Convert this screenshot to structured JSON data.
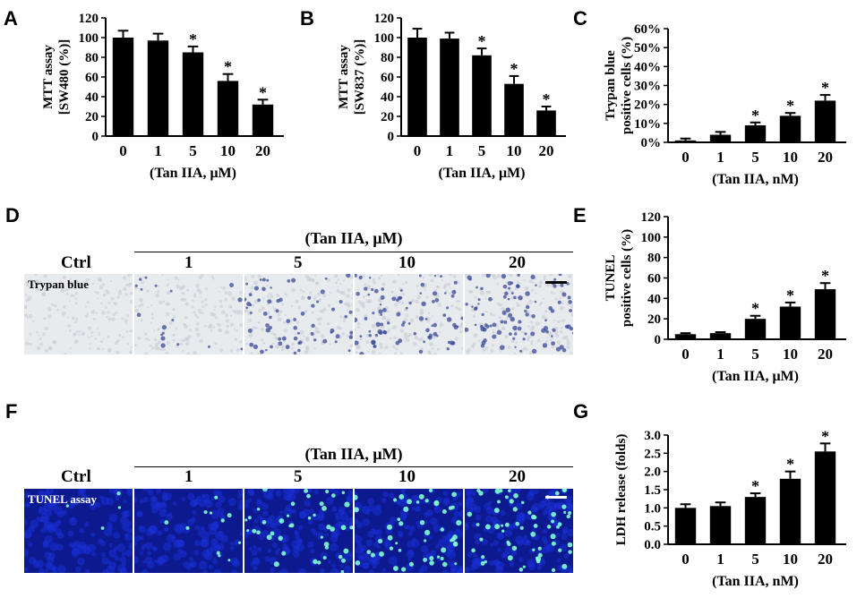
{
  "panels": {
    "A": "A",
    "B": "B",
    "C": "C",
    "D": "D",
    "E": "E",
    "F": "F",
    "G": "G"
  },
  "chart_data": [
    {
      "id": "A",
      "type": "bar",
      "categories": [
        "0",
        "1",
        "5",
        "10",
        "20"
      ],
      "values": [
        100,
        97,
        85,
        56,
        32
      ],
      "errors": [
        7,
        7,
        6,
        7,
        5
      ],
      "significant": [
        false,
        false,
        true,
        true,
        true
      ],
      "ylabel_lines": [
        "MTT assay",
        "[SW480 (%)]"
      ],
      "xlabel": "(Tan IIA, μM)",
      "ylim": [
        0,
        120
      ],
      "yticks": [
        "0",
        "20",
        "40",
        "60",
        "80",
        "100",
        "120"
      ],
      "star": "*"
    },
    {
      "id": "B",
      "type": "bar",
      "categories": [
        "0",
        "1",
        "5",
        "10",
        "20"
      ],
      "values": [
        100,
        99,
        82,
        53,
        26
      ],
      "errors": [
        9,
        6,
        7,
        8,
        4
      ],
      "significant": [
        false,
        false,
        true,
        true,
        true
      ],
      "ylabel_lines": [
        "MTT assay",
        "[SW837 (%)]"
      ],
      "xlabel": "(Tan IIA, μM)",
      "ylim": [
        0,
        120
      ],
      "yticks": [
        "0",
        "20",
        "40",
        "60",
        "80",
        "100",
        "120"
      ],
      "star": "*"
    },
    {
      "id": "C",
      "type": "bar",
      "categories": [
        "0",
        "1",
        "5",
        "10",
        "20"
      ],
      "values": [
        1,
        4,
        9,
        14,
        22
      ],
      "errors": [
        1,
        1.5,
        1.5,
        1.5,
        3
      ],
      "significant": [
        false,
        false,
        true,
        true,
        true
      ],
      "ylabel_lines": [
        "Trypan blue",
        "positive cells (%)"
      ],
      "xlabel": "(Tan IIA, nM)",
      "ylim": [
        0,
        60
      ],
      "yticks": [
        "0%",
        "10%",
        "20%",
        "30%",
        "40%",
        "50%",
        "60%"
      ],
      "star": "*"
    },
    {
      "id": "E",
      "type": "bar",
      "categories": [
        "0",
        "1",
        "5",
        "10",
        "20"
      ],
      "values": [
        5,
        6,
        20,
        32,
        49
      ],
      "errors": [
        1,
        1,
        3,
        4,
        6
      ],
      "significant": [
        false,
        false,
        true,
        true,
        true
      ],
      "ylabel_lines": [
        "TUNEL",
        "positive cells (%)"
      ],
      "xlabel": "(Tan IIA, μM)",
      "ylim": [
        0,
        120
      ],
      "yticks": [
        "0",
        "20",
        "40",
        "60",
        "80",
        "100",
        "120"
      ],
      "star": "*"
    },
    {
      "id": "G",
      "type": "bar",
      "categories": [
        "0",
        "1",
        "5",
        "10",
        "20"
      ],
      "values": [
        1.0,
        1.05,
        1.3,
        1.8,
        2.55
      ],
      "errors": [
        0.1,
        0.1,
        0.1,
        0.2,
        0.22
      ],
      "significant": [
        false,
        false,
        true,
        true,
        true
      ],
      "ylabel_lines": [
        "LDH release (folds)"
      ],
      "xlabel": "(Tan IIA, nM)",
      "ylim": [
        0,
        3.0
      ],
      "yticks": [
        "0.0",
        "0.5",
        "1.0",
        "1.5",
        "2.0",
        "2.5",
        "3.0"
      ],
      "star": "*"
    }
  ],
  "micrographs": {
    "header": "(Tan IIA, μM)",
    "ctrl": "Ctrl",
    "doses": [
      "1",
      "5",
      "10",
      "20"
    ],
    "trypan_tag": "Trypan blue",
    "tunel_tag": "TUNEL assay",
    "trypan_density": [
      0.0,
      0.15,
      0.55,
      0.7,
      0.8
    ],
    "tunel_positive_density": [
      0.05,
      0.15,
      0.6,
      0.7,
      0.9
    ],
    "colors": {
      "trypan_bg": "#e8ebee",
      "trypan_dot": "#3b4a9a",
      "tunel_bg": "#0d1a8f",
      "tunel_dot": "#7fffd4",
      "scalebar_dark": "#000000",
      "scalebar_light": "#ffffff"
    }
  }
}
